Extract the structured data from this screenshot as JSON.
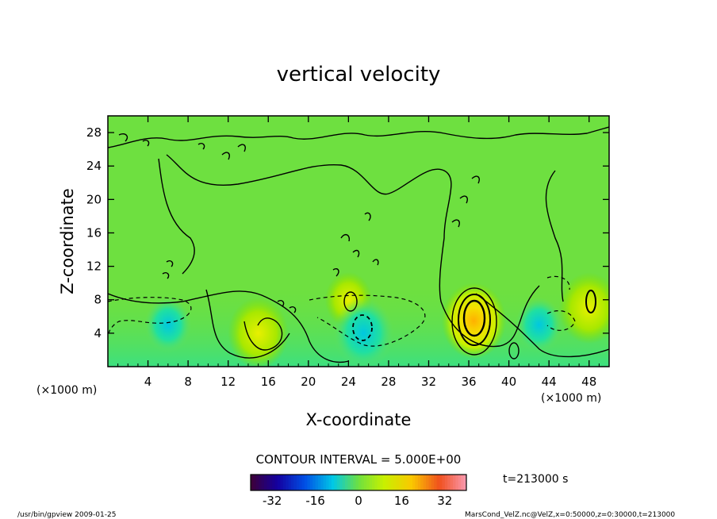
{
  "chart_data": {
    "type": "heatmap",
    "title": "vertical velocity",
    "xlabel": "X-coordinate",
    "ylabel": "Z-coordinate",
    "xunit": "(×1000 m)",
    "yunit": "(×1000 m)",
    "xlim": [
      0,
      50
    ],
    "ylim": [
      0,
      30
    ],
    "xticks": [
      4,
      8,
      12,
      16,
      20,
      24,
      28,
      32,
      36,
      40,
      44,
      48
    ],
    "yticks": [
      4,
      8,
      12,
      16,
      20,
      24,
      28
    ],
    "contour_interval_label": "CONTOUR INTERVAL = 5.000E+00",
    "colorbar": {
      "range": [
        -40,
        40
      ],
      "ticks": [
        -32,
        -16,
        0,
        16,
        32
      ]
    },
    "features": [
      {
        "x": 36.5,
        "z": 5.5,
        "value": 25,
        "kind": "updraft core"
      },
      {
        "x": 15,
        "z": 4,
        "value": 10,
        "kind": "updraft"
      },
      {
        "x": 48,
        "z": 7,
        "value": 10,
        "kind": "updraft"
      },
      {
        "x": 24,
        "z": 8,
        "value": 6,
        "kind": "updraft"
      },
      {
        "x": 25.5,
        "z": 4,
        "value": -12,
        "kind": "downdraft"
      },
      {
        "x": 6,
        "z": 5,
        "value": -8,
        "kind": "downdraft"
      },
      {
        "x": 43,
        "z": 5,
        "value": -6,
        "kind": "downdraft"
      }
    ]
  },
  "annotations": {
    "time": "t=213000 s",
    "footer_left": "/usr/bin/gpview  2009-01-25",
    "footer_right": "MarsCond_VelZ.nc@VelZ,x=0:50000,z=0:30000,t=213000"
  }
}
